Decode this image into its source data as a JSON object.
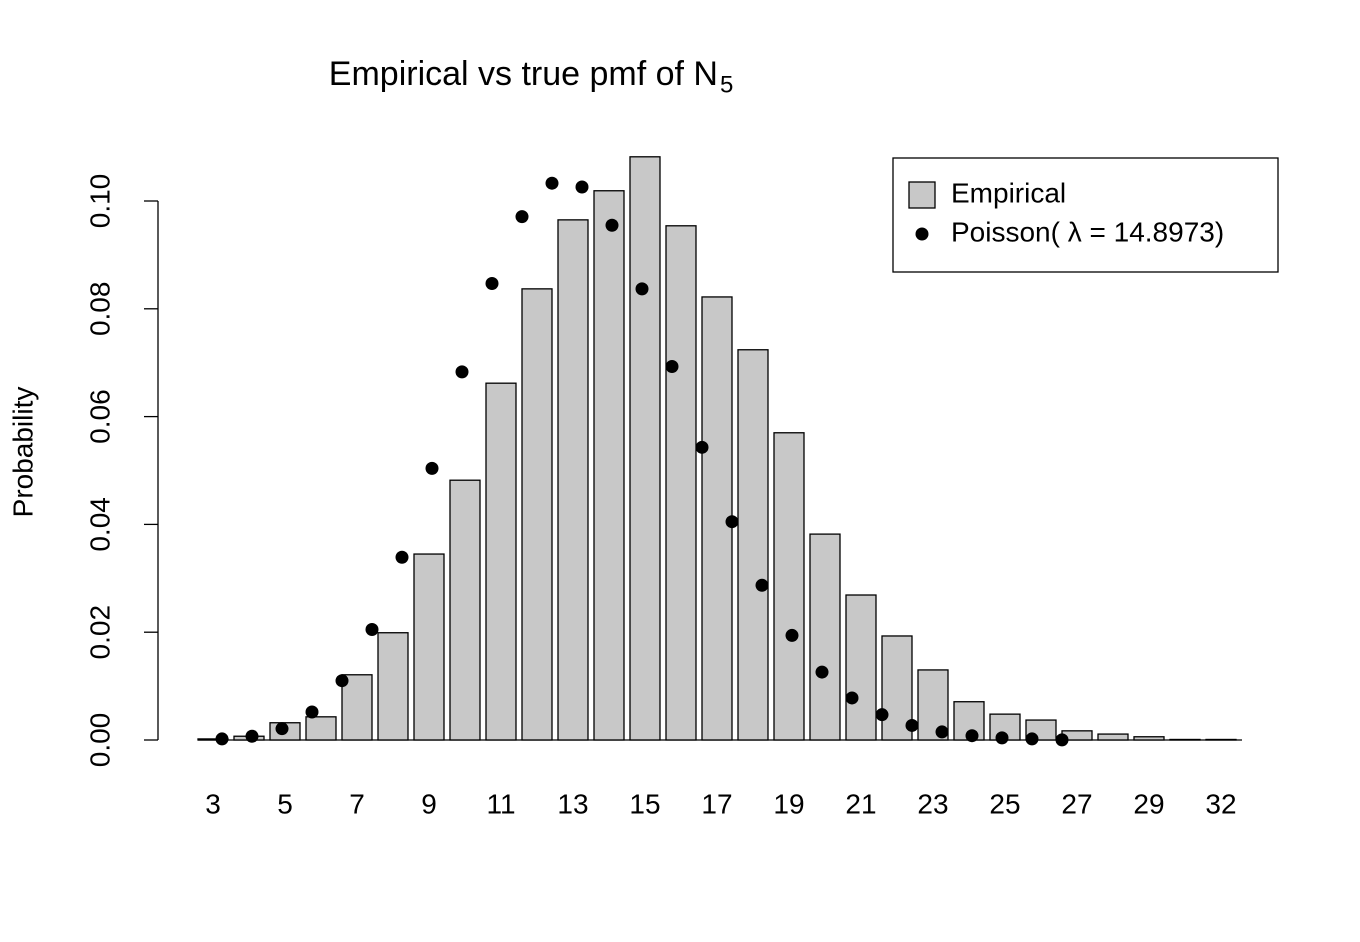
{
  "chart_data": {
    "type": "bar",
    "title": "Empirical vs true pmf of  N",
    "title_subscript": "5",
    "y_label": "Probability",
    "categories": [
      "3",
      null,
      "5",
      null,
      "7",
      null,
      "9",
      null,
      "11",
      null,
      "13",
      null,
      "15",
      null,
      "17",
      null,
      "19",
      null,
      "21",
      null,
      "23",
      null,
      "25",
      null,
      "27",
      null,
      "29",
      null,
      "32"
    ],
    "series": [
      {
        "name": "Empirical",
        "type": "bar",
        "color": "#c8c8c8",
        "values": [
          0.0002,
          0.0007,
          0.0032,
          0.0043,
          0.0121,
          0.0199,
          0.0345,
          0.0482,
          0.0662,
          0.0837,
          0.0965,
          0.1019,
          0.1082,
          0.0954,
          0.0822,
          0.0724,
          0.057,
          0.0382,
          0.0269,
          0.0193,
          0.013,
          0.0071,
          0.0048,
          0.0037,
          0.0017,
          0.0011,
          0.0006,
          0.0001,
          0.0001
        ]
      },
      {
        "name": "Poisson( λ = 14.8973)",
        "type": "scatter",
        "color": "#000000",
        "values": [
          0.0002,
          0.0007,
          0.0021,
          0.0052,
          0.011,
          0.0205,
          0.0339,
          0.0504,
          0.0683,
          0.0847,
          0.0971,
          0.1033,
          0.1026,
          0.0955,
          0.0837,
          0.0693,
          0.0543,
          0.0405,
          0.0287,
          0.0194,
          0.0126,
          0.0078,
          0.0047,
          0.0027,
          0.0015,
          0.0008,
          0.0004,
          0.0002,
          2e-05
        ]
      }
    ],
    "ylim": [
      0,
      0.11
    ],
    "yticks": [
      {
        "value": 0,
        "label": "0.00"
      },
      {
        "value": 0.02,
        "label": "0.02"
      },
      {
        "value": 0.04,
        "label": "0.04"
      },
      {
        "value": 0.06,
        "label": "0.06"
      },
      {
        "value": 0.08,
        "label": "0.08"
      },
      {
        "value": 0.1,
        "label": "0.10"
      }
    ],
    "legend": "top-right"
  }
}
